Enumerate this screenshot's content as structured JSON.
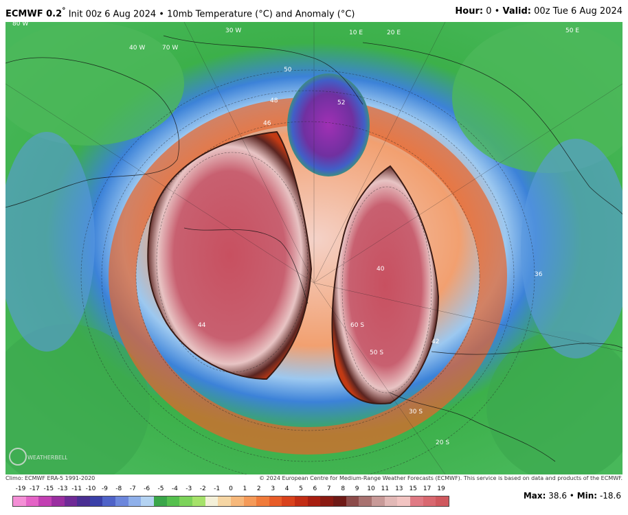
{
  "header": {
    "model": "ECMWF 0.2",
    "degree": "°",
    "init": "Init 00z 6 Aug 2024",
    "sep": "•",
    "title": "10mb Temperature (°C) and Anomaly (°C)",
    "hour_label": "Hour:",
    "hour_value": "0",
    "valid_label": "Valid:",
    "valid_value": "00z Tue 6 Aug 2024"
  },
  "footer": {
    "climo": "Climo: ECMWF ERA-5 1991-2020",
    "copyright": "© 2024 European Centre for Medium-Range Weather Forecasts (ECMWF). This service is based on data and products of the ECMWF."
  },
  "logo": {
    "text": "WEATHERBELL"
  },
  "colorbar": {
    "labels": [
      "-19",
      "-17",
      "-15",
      "-13",
      "-11",
      "-10",
      "-9",
      "-8",
      "-7",
      "-6",
      "-5",
      "-4",
      "-3",
      "-2",
      "-1",
      "0",
      "1",
      "2",
      "3",
      "4",
      "5",
      "6",
      "7",
      "8",
      "9",
      "10",
      "11",
      "13",
      "15",
      "17",
      "19"
    ],
    "colors": [
      "#f48fd6",
      "#e463c6",
      "#c23fb2",
      "#9a2ea0",
      "#6f2a96",
      "#4a2f92",
      "#3a40a8",
      "#4f63c8",
      "#6c87dc",
      "#8fb0ea",
      "#b4d3f2",
      "#3aa64a",
      "#55c04e",
      "#7cd35a",
      "#a6e26a",
      "#f4f0d8",
      "#f6d6a4",
      "#f7b87a",
      "#f59a58",
      "#f07b3a",
      "#e85c28",
      "#d9421c",
      "#c22d14",
      "#a81e10",
      "#8a1a12",
      "#6e1a16",
      "#8c4b4a",
      "#a87270",
      "#c89a98",
      "#e2b8b6",
      "#f2c4c2"
    ],
    "colors_upper": [
      "#e07a84",
      "#d96870",
      "#cf585e"
    ]
  },
  "stats": {
    "max_label": "Max:",
    "max_value": "38.6",
    "sep": "•",
    "min_label": "Min:",
    "min_value": "-18.6"
  },
  "map": {
    "contour_labels": [
      "50",
      "48",
      "46",
      "44",
      "42",
      "40",
      "36",
      "52",
      "50 S",
      "60 S",
      "30 S",
      "20 S",
      "70 W",
      "30 W",
      "10 E",
      "20 E",
      "50 E",
      "40 W",
      "80 W"
    ]
  }
}
